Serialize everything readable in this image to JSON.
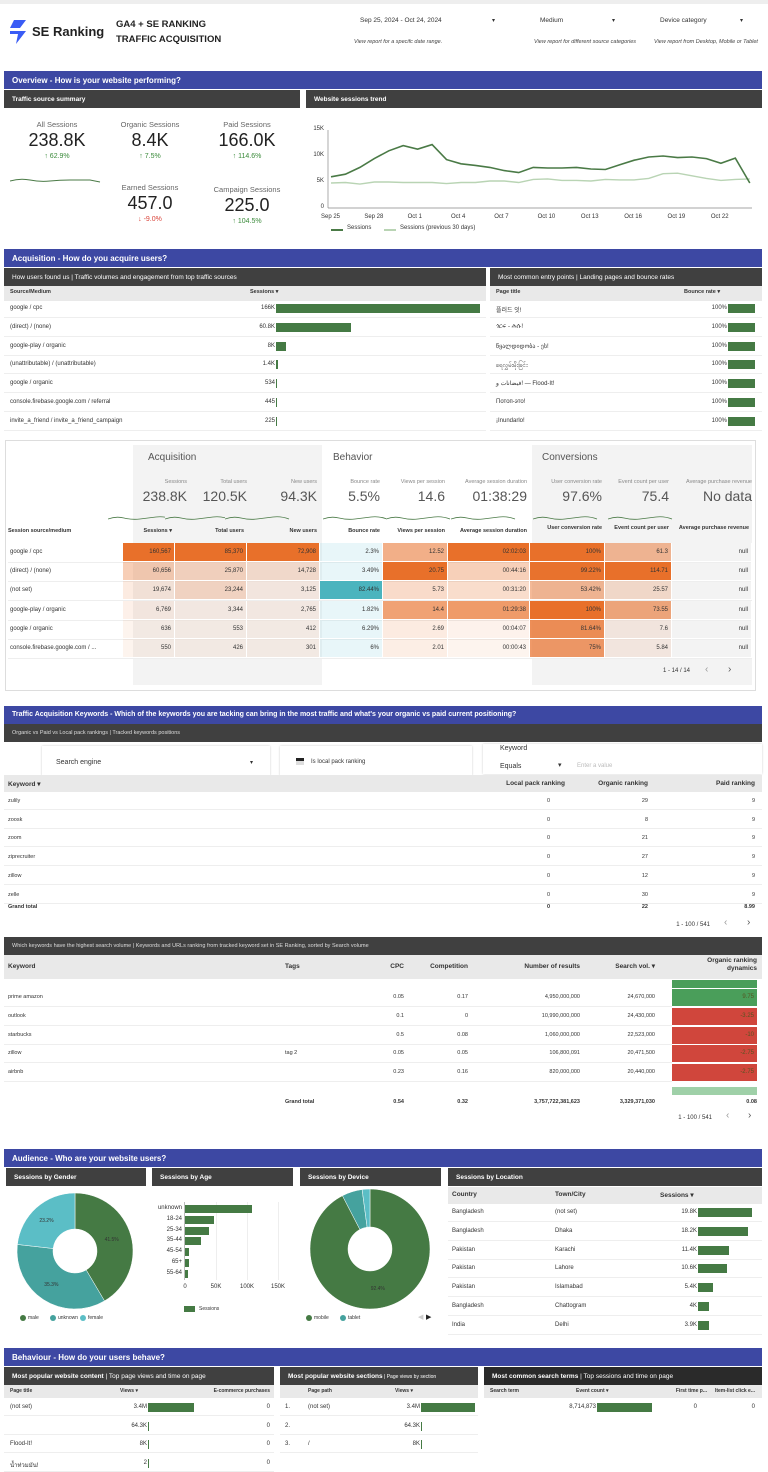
{
  "header": {
    "brand": "SE Ranking",
    "title_line1": "GA4 + SE RANKING",
    "title_line2": "TRAFFIC ACQUISITION",
    "filters": [
      {
        "value": "Sep 25, 2024 - Oct 24, 2024",
        "hint": "View report for a specifc date range."
      },
      {
        "value": "Medium",
        "hint": "View report for different source categories"
      },
      {
        "value": "Device category",
        "hint": "View report from Desktop, Mobile or Tablet"
      }
    ]
  },
  "colors": {
    "banner": "#3d48a3",
    "subheader": "#404040",
    "bar": "#457a44",
    "up": "#3a8a3a",
    "down": "#d9443a",
    "heat": "#e8702a",
    "teal": "#4bb4be"
  },
  "overview": {
    "banner": "Overview -  How is your website performing?",
    "summary_title": "Traffic source summary",
    "trend_title": "Website sessions trend",
    "kpis": [
      {
        "label": "All Sessions",
        "value": "238.8K",
        "change": "62.9%",
        "dir": "up"
      },
      {
        "label": "Organic Sessions",
        "value": "8.4K",
        "change": "7.5%",
        "dir": "up"
      },
      {
        "label": "Paid Sessions",
        "value": "166.0K",
        "change": "114.6%",
        "dir": "up"
      },
      {
        "label": "Earned Sessions",
        "value": "457.0",
        "change": "-9.0%",
        "dir": "down"
      },
      {
        "label": "Campaign Sessions",
        "value": "225.0",
        "change": "104.5%",
        "dir": "up"
      }
    ]
  },
  "chart_data": {
    "type": "line",
    "x_ticks": [
      "Sep 25",
      "Sep 28",
      "Oct 1",
      "Oct 4",
      "Oct 7",
      "Oct 10",
      "Oct 13",
      "Oct 16",
      "Oct 19",
      "Oct 22"
    ],
    "y_ticks": [
      "0",
      "5K",
      "10K",
      "15K"
    ],
    "ylim": [
      0,
      15000
    ],
    "x_range": [
      "2024-09-25",
      "2024-10-24"
    ],
    "legend_position": "bottom",
    "grid": false,
    "series": [
      {
        "name": "Sessions",
        "color": "#4a7a46",
        "values": [
          6000,
          6500,
          7800,
          9500,
          11000,
          12000,
          11300,
          12200,
          9300,
          8500,
          8200,
          7800,
          7200,
          6800,
          7800,
          7700,
          7700,
          7800,
          7500,
          7400,
          8300,
          9200,
          9800,
          10000,
          9700,
          9800,
          9500,
          8600,
          9600,
          4800
        ]
      },
      {
        "name": "Sessions (previous 30 days)",
        "color": "#b9d4b4",
        "values": [
          4800,
          4900,
          4600,
          5000,
          5000,
          4900,
          4900,
          4900,
          4700,
          4900,
          4900,
          5200,
          5200,
          4900,
          5500,
          5600,
          5300,
          5300,
          5200,
          5500,
          5400,
          5400,
          5700,
          6600,
          6700,
          6200,
          5700,
          5300,
          5500,
          5600
        ]
      }
    ]
  },
  "acquisition": {
    "banner": "Acquisition -  How do you acquire users?",
    "sources_title": "How users found us | Traffic volumes and engagement from top traffic sources",
    "sources_headers": [
      "Source/Medium",
      "Sessions ▾"
    ],
    "sources": [
      {
        "name": "google / cpc",
        "label": "166K",
        "value": 166000
      },
      {
        "name": "(direct) / (none)",
        "label": "60.8K",
        "value": 60800
      },
      {
        "name": "google-play / organic",
        "label": "8K",
        "value": 8000
      },
      {
        "name": "(unattributable) / (unattributable)",
        "label": "1.4K",
        "value": 1400
      },
      {
        "name": "google / organic",
        "label": "534",
        "value": 534
      },
      {
        "name": "console.firebase.google.com / referral",
        "label": "445",
        "value": 445
      },
      {
        "name": "invite_a_friend / invite_a_friend_campaign",
        "label": "225",
        "value": 225
      }
    ],
    "entry_title": "Most common entry points | Landing pages and bounce rates",
    "entry_headers": [
      "Page title",
      "Bounce rate ▾"
    ],
    "entries": [
      {
        "title": "플러드 잇!",
        "rate": "100%",
        "value": 1
      },
      {
        "title": "ጎርፍ - ሕሱ!",
        "rate": "100%",
        "value": 1
      },
      {
        "title": "წყალდიდობა - ეს!",
        "rate": "100%",
        "value": 1
      },
      {
        "title": "ရေလွှမ်းမိုးခြင်း",
        "rate": "100%",
        "value": 1
      },
      {
        "title": "فيضانات و! — Flood-It!",
        "rate": "100%",
        "value": 1
      },
      {
        "title": "Потоп-это!",
        "rate": "100%",
        "value": 1
      },
      {
        "title": "¡Inundarlo!",
        "rate": "100%",
        "value": 1
      }
    ]
  },
  "scorecard": {
    "groups": [
      "Acquisition",
      "Behavior",
      "Conversions"
    ],
    "metrics": [
      {
        "label": "Sessions",
        "value": "238.8K"
      },
      {
        "label": "Total users",
        "value": "120.5K"
      },
      {
        "label": "New users",
        "value": "94.3K"
      },
      {
        "label": "Bounce rate",
        "value": "5.5%"
      },
      {
        "label": "Views per session",
        "value": "14.6"
      },
      {
        "label": "Average session duration",
        "value": "01:38:29"
      },
      {
        "label": "User conversion rate",
        "value": "97.6%"
      },
      {
        "label": "Event count per user",
        "value": "75.4"
      },
      {
        "label": "Average purchase revenue",
        "value": "No data"
      }
    ],
    "headers": [
      "Session source/medium",
      "Sessions ▾",
      "Total users",
      "New users",
      "Bounce rate",
      "Views per session",
      "Average session duration",
      "User conversion rate",
      "Event count per user",
      "Average purchase revenue"
    ],
    "rows": [
      [
        "google / cpc",
        "160,567",
        "85,370",
        "72,908",
        "2.3%",
        "12.52",
        "02:02:03",
        "100%",
        "61.3",
        "null"
      ],
      [
        "(direct) / (none)",
        "60,656",
        "25,870",
        "14,728",
        "3.49%",
        "20.75",
        "00:44:16",
        "99.22%",
        "114.71",
        "null"
      ],
      [
        "(not set)",
        "19,674",
        "23,244",
        "3,125",
        "82.44%",
        "5.73",
        "00:31:20",
        "53.42%",
        "25.57",
        "null"
      ],
      [
        "google-play / organic",
        "6,769",
        "3,344",
        "2,765",
        "1.82%",
        "14.4",
        "01:29:38",
        "100%",
        "73.55",
        "null"
      ],
      [
        "google / organic",
        "636",
        "553",
        "412",
        "6.29%",
        "2.69",
        "00:04:07",
        "81.64%",
        "7.6",
        "null"
      ],
      [
        "console.firebase.google.com / ...",
        "550",
        "426",
        "301",
        "6%",
        "2.01",
        "00:00:43",
        "75%",
        "5.84",
        "null"
      ]
    ],
    "pagination": "1 - 14 / 14"
  },
  "keywords": {
    "banner": "Traffic Acquisition Keywords -  Which of the keywords you are tacking can bring in the most traffic and what's your organic vs paid current positioning?",
    "sub": "Organic vs Paid  vs Local pack rankings | Tracked keywords positions",
    "search_engine": "Search engine",
    "local_pack": "Is local pack ranking",
    "filter_label": "Keyword",
    "filter_op": "Equals",
    "filter_placeholder": "Enter a value",
    "headers": [
      "Keyword ▾",
      "Local pack ranking",
      "Organic ranking",
      "Paid ranking"
    ],
    "rows": [
      [
        "zulily",
        "0",
        "29",
        "9"
      ],
      [
        "zoosk",
        "0",
        "8",
        "9"
      ],
      [
        "zoom",
        "0",
        "21",
        "9"
      ],
      [
        "ziprecruiter",
        "0",
        "27",
        "9"
      ],
      [
        "zillow",
        "0",
        "12",
        "9"
      ],
      [
        "zelle",
        "0",
        "30",
        "9"
      ]
    ],
    "total": [
      "Grand total",
      "0",
      "22",
      "8.99"
    ],
    "pagination": "1 - 100 / 541"
  },
  "volume": {
    "sub": "Which keywords have the highest search volume | Keywords and URLs ranking from tracked keyword set in SE Ranking, sorted by Search volume",
    "headers": [
      "Keyword",
      "Tags",
      "CPC",
      "Competition",
      "Number of results",
      "Search vol. ▾",
      "Organic ranking dynamics"
    ],
    "rows": [
      [
        "prime amazon",
        "",
        "0.05",
        "0.17",
        "4,950,000,000",
        "24,670,000",
        "9.75"
      ],
      [
        "outlook",
        "",
        "0.1",
        "0",
        "10,990,000,000",
        "24,430,000",
        "-3.25"
      ],
      [
        "starbucks",
        "",
        "0.5",
        "0.08",
        "1,060,000,000",
        "22,523,000",
        "-10"
      ],
      [
        "zillow",
        "tag 2",
        "0.05",
        "0.05",
        "106,800,091",
        "20,471,500",
        "-2.75"
      ],
      [
        "airbnb",
        "",
        "0.23",
        "0.16",
        "820,000,000",
        "20,440,000",
        "-2.75"
      ]
    ],
    "total": [
      "Grand total",
      "0.54",
      "0.32",
      "3,757,722,381,623",
      "3,329,371,030",
      "0.08"
    ],
    "pagination": "1 - 100 / 541"
  },
  "audience": {
    "banner": "Audience -  Who are your website users?",
    "gender": {
      "title": "Sessions by Gender",
      "slices": [
        {
          "name": "male",
          "value": 41.5,
          "label": "41.5%",
          "color": "#457a44"
        },
        {
          "name": "unknown",
          "value": 35.3,
          "label": "35.3%",
          "color": "#45a29e"
        },
        {
          "name": "female",
          "value": 23.2,
          "label": "23.2%",
          "color": "#5bbec6"
        }
      ]
    },
    "age": {
      "title": "Sessions by Age",
      "categories": [
        "unknown",
        "18-24",
        "25-34",
        "35-44",
        "45-54",
        "65+",
        "55-64"
      ],
      "values": [
        108000,
        47000,
        38000,
        26000,
        6000,
        6000,
        5000
      ],
      "ticks": [
        "0",
        "50K",
        "100K",
        "150K"
      ],
      "xlim": [
        0,
        150000
      ],
      "legend": "Sessions"
    },
    "device": {
      "title": "Sessions by Device",
      "slices": [
        {
          "name": "mobile",
          "value": 92.4,
          "label": "92.4%",
          "color": "#457a44"
        },
        {
          "name": "tablet",
          "value": 5.5,
          "label": "",
          "color": "#45a29e"
        },
        {
          "name": "other",
          "value": 2.1,
          "label": "",
          "color": "#5bbec6"
        }
      ],
      "legend": [
        "mobile",
        "tablet"
      ]
    },
    "location": {
      "title": "Sessions by Location",
      "headers": [
        "Country",
        "Town/City",
        "Sessions ▾"
      ],
      "rows": [
        {
          "country": "Bangladesh",
          "city": "(not set)",
          "label": "19.8K",
          "value": 19800
        },
        {
          "country": "Bangladesh",
          "city": "Dhaka",
          "label": "18.2K",
          "value": 18200
        },
        {
          "country": "Pakistan",
          "city": "Karachi",
          "label": "11.4K",
          "value": 11400
        },
        {
          "country": "Pakistan",
          "city": "Lahore",
          "label": "10.6K",
          "value": 10600
        },
        {
          "country": "Pakistan",
          "city": "Islamabad",
          "label": "5.4K",
          "value": 5400
        },
        {
          "country": "Bangladesh",
          "city": "Chattogram",
          "label": "4K",
          "value": 4000
        },
        {
          "country": "India",
          "city": "Delhi",
          "label": "3.9K",
          "value": 3900
        }
      ]
    }
  },
  "behaviour": {
    "banner": "Behaviour -  How do your users behave?",
    "content": {
      "title_bold": "Most popular website content",
      "title_rest": " | Top page views and time on page",
      "headers": [
        "Page title",
        "Views ▾",
        "E-commerce purchases"
      ],
      "rows": [
        {
          "title": "(not set)",
          "views": "3.4M",
          "value": 3400000,
          "purchases": "0"
        },
        {
          "title": "",
          "views": "64.3K",
          "value": 64300,
          "purchases": "0"
        },
        {
          "title": "Flood-It!",
          "views": "8K",
          "value": 8000,
          "purchases": "0"
        },
        {
          "title": "น้ำท่วมมัน!",
          "views": "2",
          "value": 2,
          "purchases": "0"
        }
      ]
    },
    "sections": {
      "title_bold": "Most popular website sections",
      "title_rest": " | Page views by section",
      "headers": [
        "Page path",
        "Views ▾"
      ],
      "rows": [
        {
          "num": "1.",
          "path": "(not set)",
          "views": "3.4M",
          "value": 3400000
        },
        {
          "num": "2.",
          "path": "",
          "views": "64.3K",
          "value": 64300
        },
        {
          "num": "3.",
          "path": "/",
          "views": "8K",
          "value": 8000
        }
      ]
    },
    "search": {
      "title_bold": "Most common search terms",
      "title_rest": " | Top sessions and time on page",
      "headers": [
        "Search term",
        "Event count ▾",
        "First time p...",
        "Item-list click e..."
      ],
      "rows": [
        {
          "term": "",
          "count": "8,714,873",
          "value": 8714873,
          "first": "0",
          "item": "0"
        }
      ]
    }
  }
}
